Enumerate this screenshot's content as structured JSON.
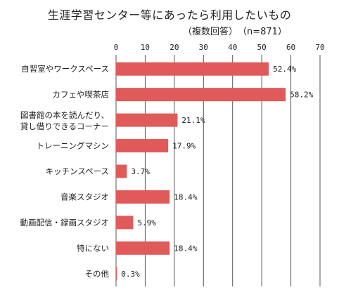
{
  "chart_data": {
    "type": "bar",
    "orientation": "horizontal",
    "title": "生涯学習センター等にあったら利用したいもの",
    "subtitle": "（複数回答）　（n=871）",
    "categories": [
      [
        "自習室やワークスペース"
      ],
      [
        "カフェや喫茶店"
      ],
      [
        "図書館の本を読んだり、",
        "貸し借りできるコーナー"
      ],
      [
        "トレーニングマシン"
      ],
      [
        "キッチンスペース"
      ],
      [
        "音楽スタジオ"
      ],
      [
        "動画配信・録画スタジオ"
      ],
      [
        "特にない"
      ],
      [
        "その他"
      ]
    ],
    "values": [
      52.4,
      58.2,
      21.1,
      17.9,
      3.7,
      18.4,
      5.9,
      18.4,
      0.3
    ],
    "value_labels": [
      "52.4%",
      "58.2%",
      "21.1%",
      "17.9%",
      "3.7%",
      "18.4%",
      "5.9%",
      "18.4%",
      "0.3%"
    ],
    "xlim": [
      0,
      70
    ],
    "xticks": [
      0,
      10,
      20,
      30,
      40,
      50,
      60,
      70
    ],
    "grid": true,
    "bar_color": "#e05a5a",
    "grid_color": "#555555"
  }
}
